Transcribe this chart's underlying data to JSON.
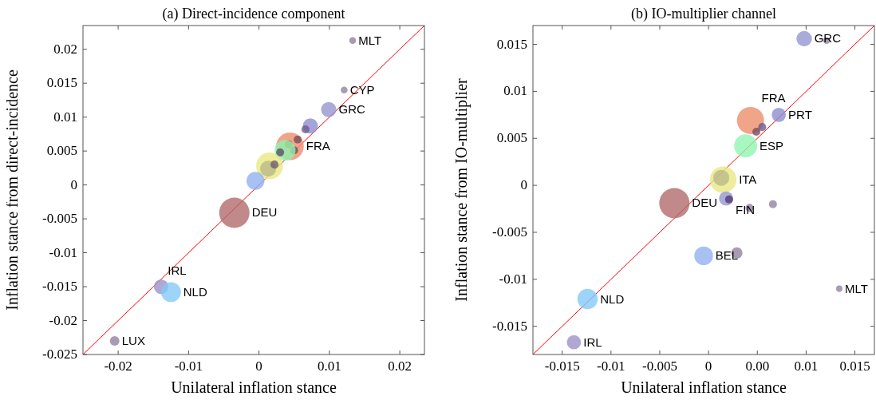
{
  "chart_data": [
    {
      "type": "bubble",
      "title": "(a) Direct-incidence component",
      "xlabel": "Unilateral inflation stance",
      "ylabel": "Inflation stance from direct-incidence",
      "xlim": [
        -0.025,
        0.0235
      ],
      "ylim": [
        -0.025,
        0.0235
      ],
      "xticks": [
        -0.02,
        -0.01,
        0,
        0.01,
        0.02
      ],
      "yticks": [
        -0.025,
        -0.02,
        -0.015,
        -0.01,
        -0.005,
        0,
        0.005,
        0.01,
        0.015,
        0.02
      ],
      "series": [
        {
          "type": "line",
          "color": "#ff0000",
          "x": [
            -0.025,
            0.0235
          ],
          "values": [
            -0.025,
            0.0235
          ]
        },
        {
          "x": [
            0.0133,
            0.0121,
            0.0099,
            0.0073,
            0.0066,
            0.0044,
            0.0055,
            0.005,
            0.0042,
            0.0037,
            0.003,
            0.0015,
            0.0013,
            0.0022,
            -0.0005,
            -0.0035,
            -0.0139,
            -0.0125,
            -0.0205
          ],
          "values": [
            0.0213,
            0.014,
            0.0111,
            0.0087,
            0.0082,
            0.0057,
            0.0067,
            0.0051,
            0.006,
            0.0051,
            0.0048,
            0.0028,
            0.0024,
            0.003,
            0.0006,
            -0.0041,
            -0.015,
            -0.0158,
            -0.023
          ],
          "sizes": [
            0.05,
            0.05,
            0.25,
            0.25,
            0.07,
            0.83,
            0.07,
            0.07,
            0.07,
            0.48,
            0.07,
            0.78,
            0.28,
            0.07,
            0.35,
            1,
            0.23,
            0.43,
            0.1
          ],
          "colors": [
            "#8f7f9e",
            "#8f7f9e",
            "#9494d0",
            "#8a8ad0",
            "#6a5a8a",
            "#ec8c68",
            "#7a4a5a",
            "#7a4a5a",
            "#a0603a",
            "#8ef5b0",
            "#5a4a6a",
            "#e8e880",
            "#b8b888",
            "#6a5a6a",
            "#90b0f0",
            "#b06868",
            "#9a90c6",
            "#80c8f8",
            "#8f7f9e"
          ]
        }
      ],
      "annotations": [
        {
          "text": "MLT",
          "x": 0.0133,
          "y": 0.0213
        },
        {
          "text": "CYP",
          "x": 0.0121,
          "y": 0.014
        },
        {
          "text": "GRC",
          "x": 0.0099,
          "y": 0.0111
        },
        {
          "text": "FRA",
          "x": 0.0044,
          "y": 0.0057
        },
        {
          "text": "DEU",
          "x": -0.0035,
          "y": -0.0041
        },
        {
          "text": "NLD",
          "x": -0.0125,
          "y": -0.0158
        },
        {
          "text": "IRL",
          "x": -0.0139,
          "y": -0.015
        },
        {
          "text": "LUX",
          "x": -0.0205,
          "y": -0.023
        }
      ]
    },
    {
      "type": "bubble",
      "title": "(b) IO-multiplier channel",
      "xlabel": "Unilateral inflation stance",
      "ylabel": "Inflation stance from IO-multiplier",
      "xlim": [
        -0.018,
        0.017
      ],
      "ylim": [
        -0.018,
        0.017
      ],
      "xticks": [
        -0.015,
        -0.01,
        -0.005,
        0,
        {
          "value": 0.005,
          "label": "0.00"
        },
        0.01,
        0.015
      ],
      "yticks": [
        -0.015,
        -0.01,
        -0.005,
        0,
        0.005,
        0.01,
        0.015
      ],
      "series": [
        {
          "type": "line",
          "color": "#ff0000",
          "x": [
            -0.018,
            0.017
          ],
          "values": [
            -0.018,
            0.017
          ]
        },
        {
          "x": [
            0.0098,
            0.0121,
            0.0072,
            0.0043,
            0.0055,
            0.0049,
            0.0038,
            0.0015,
            0.0013,
            0.0018,
            0.0021,
            0.0042,
            0.0066,
            -0.0035,
            -0.0005,
            0.0029,
            0.0134,
            -0.0124,
            -0.0138
          ],
          "values": [
            0.0156,
            0.0154,
            0.0075,
            0.0069,
            0.0062,
            0.0057,
            0.0042,
            0.0006,
            0.0008,
            -0.0014,
            -0.0015,
            -0.0024,
            -0.002,
            -0.0019,
            -0.0075,
            -0.0072,
            -0.011,
            -0.0121,
            -0.0167
          ],
          "sizes": [
            0.26,
            0.05,
            0.22,
            0.8,
            0.07,
            0.07,
            0.57,
            0.77,
            0.28,
            0.22,
            0.07,
            0.07,
            0.07,
            1,
            0.38,
            0.14,
            0.045,
            0.45,
            0.22
          ],
          "colors": [
            "#9494d0",
            "#8f7f9e",
            "#8a8ad0",
            "#ec8c68",
            "#6a5a8a",
            "#7a4a5a",
            "#8ef5b0",
            "#e8e880",
            "#b8b888",
            "#9494d0",
            "#4a3a6a",
            "#8f7f9e",
            "#8f7f9e",
            "#b06868",
            "#90b0f0",
            "#8f7f9e",
            "#8f7f9e",
            "#80c8f8",
            "#9a90c6"
          ]
        }
      ],
      "annotations": [
        {
          "text": "GRC",
          "x": 0.0098,
          "y": 0.0156
        },
        {
          "text": "PRT",
          "x": 0.0072,
          "y": 0.0075
        },
        {
          "text": "FRA",
          "x": 0.0043,
          "y": 0.0069
        },
        {
          "text": "ESP",
          "x": 0.0038,
          "y": 0.0042
        },
        {
          "text": "ITA",
          "x": 0.0015,
          "y": 0.0006
        },
        {
          "text": "FIN",
          "x": 0.0018,
          "y": -0.0014
        },
        {
          "text": "DEU",
          "x": -0.0035,
          "y": -0.0019
        },
        {
          "text": "BEL",
          "x": -0.0005,
          "y": -0.0075
        },
        {
          "text": "MLT",
          "x": 0.0134,
          "y": -0.011
        },
        {
          "text": "NLD",
          "x": -0.0124,
          "y": -0.0121
        },
        {
          "text": "IRL",
          "x": -0.0138,
          "y": -0.0167
        }
      ]
    }
  ]
}
